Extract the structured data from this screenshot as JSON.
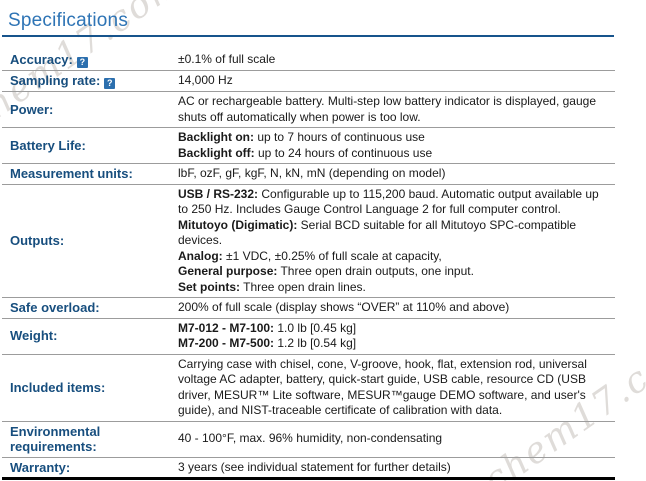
{
  "page": {
    "title": "Specifications",
    "watermark_text": "chem17.com"
  },
  "colors": {
    "title": "#2E74B5",
    "title_rule": "#17548C",
    "label_text": "#174E7E",
    "row_divider": "#9C9C9C",
    "bottom_border": "#000000",
    "help_icon_bg": "#2C6FAE"
  },
  "help_icon": {
    "glyph": "?"
  },
  "table": {
    "rows": [
      {
        "label": "Accuracy:",
        "help": true,
        "lines": [
          [
            {
              "t": "±0.1% of full scale"
            }
          ]
        ]
      },
      {
        "label": "Sampling rate:",
        "help": true,
        "lines": [
          [
            {
              "t": "14,000 Hz"
            }
          ]
        ]
      },
      {
        "label": "Power:",
        "help": false,
        "lines": [
          [
            {
              "t": "AC or rechargeable battery. Multi-step low battery indicator is displayed, gauge shuts off automatically when power is too low."
            }
          ]
        ]
      },
      {
        "label": "Battery Life:",
        "help": false,
        "lines": [
          [
            {
              "b": true,
              "t": "Backlight on:"
            },
            {
              "t": " up to 7 hours of continuous use"
            }
          ],
          [
            {
              "b": true,
              "t": "Backlight off:"
            },
            {
              "t": " up to 24 hours of continuous use"
            }
          ]
        ]
      },
      {
        "label": "Measurement units:",
        "help": false,
        "lines": [
          [
            {
              "t": "lbF, ozF, gF, kgF, N, kN, mN (depending on model)"
            }
          ]
        ]
      },
      {
        "label": "Outputs:",
        "help": false,
        "lines": [
          [
            {
              "b": true,
              "t": "USB / RS-232:"
            },
            {
              "t": " Configurable up to 115,200 baud. Automatic output available up to 250 Hz. Includes Gauge Control Language 2 for full computer control."
            }
          ],
          [
            {
              "b": true,
              "t": "Mitutoyo (Digimatic):"
            },
            {
              "t": " Serial BCD suitable for all Mitutoyo SPC-compatible devices."
            }
          ],
          [
            {
              "b": true,
              "t": "Analog:"
            },
            {
              "t": " ±1 VDC, ±0.25% of full scale at capacity,"
            }
          ],
          [
            {
              "b": true,
              "t": "General purpose:"
            },
            {
              "t": " Three open drain outputs, one input."
            }
          ],
          [
            {
              "b": true,
              "t": "Set points:"
            },
            {
              "t": " Three open drain lines."
            }
          ]
        ]
      },
      {
        "label": "Safe overload:",
        "help": false,
        "lines": [
          [
            {
              "t": "200% of full scale (display shows “OVER” at 110% and above)"
            }
          ]
        ]
      },
      {
        "label": "Weight:",
        "help": false,
        "lines": [
          [
            {
              "b": true,
              "t": "M7-012 - M7-100:"
            },
            {
              "t": " 1.0 lb [0.45 kg]"
            }
          ],
          [
            {
              "b": true,
              "t": "M7-200 - M7-500:"
            },
            {
              "t": " 1.2 lb [0.54 kg]"
            }
          ]
        ]
      },
      {
        "label": "Included items:",
        "help": false,
        "lines": [
          [
            {
              "t": "Carrying case with chisel, cone, V-groove, hook, flat, extension rod, universal voltage AC adapter, battery, quick-start guide, USB cable, resource CD (USB driver, MESUR™ Lite software, MESUR™gauge DEMO software, and user's guide), and NIST-traceable certificate of calibration with data."
            }
          ]
        ]
      },
      {
        "label": "Environmental requirements:",
        "help": false,
        "lines": [
          [
            {
              "t": "40 - 100°F, max. 96% humidity, non-condensating"
            }
          ]
        ]
      },
      {
        "label": "Warranty:",
        "help": false,
        "lines": [
          [
            {
              "t": "3 years (see individual statement for further details)"
            }
          ]
        ]
      }
    ]
  }
}
